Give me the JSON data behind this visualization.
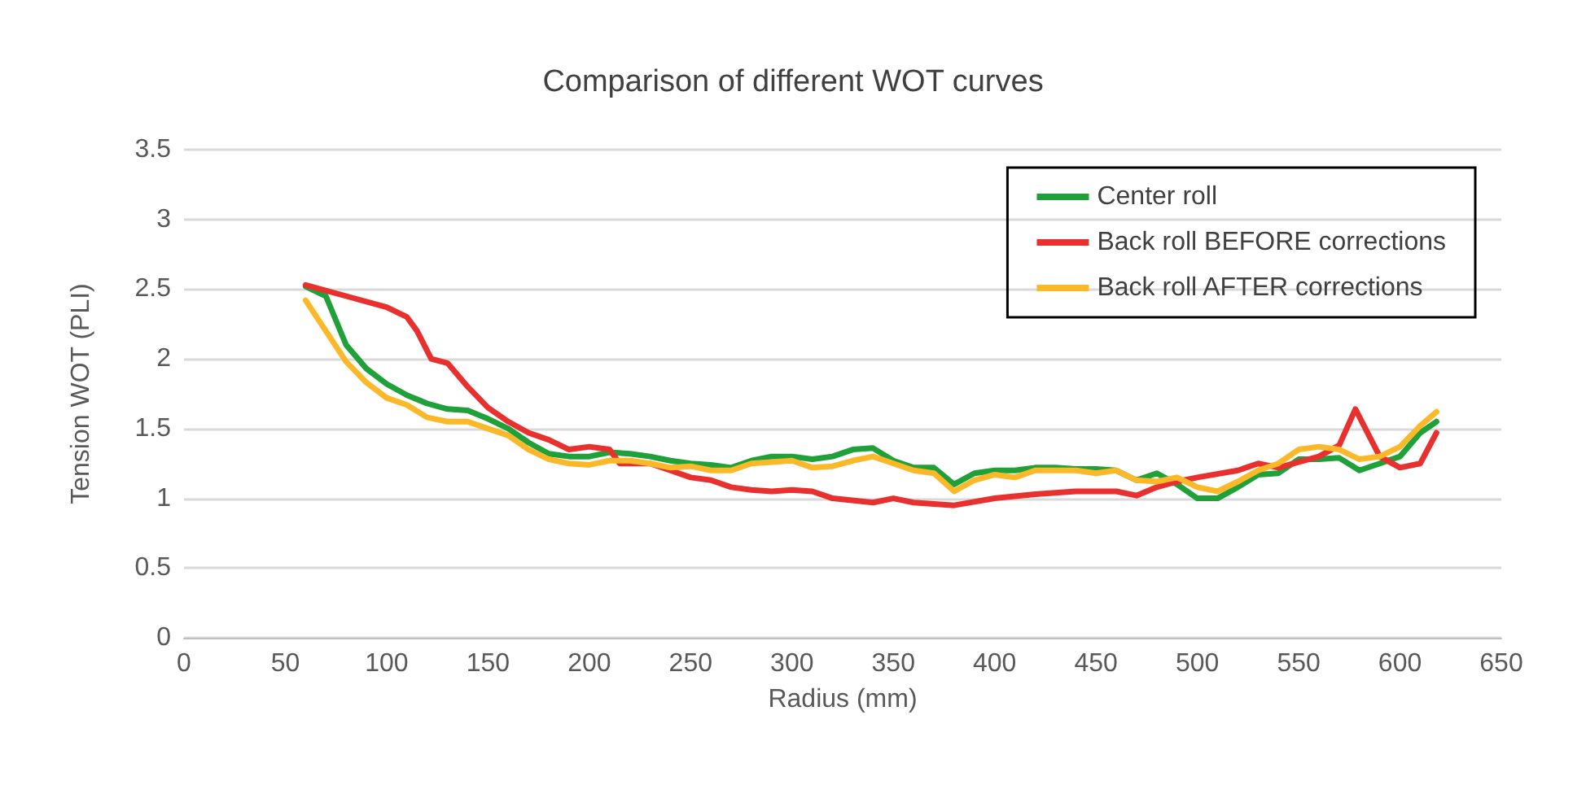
{
  "chart_data": {
    "type": "line",
    "title": "Comparison of different WOT curves",
    "xlabel": "Radius (mm)",
    "ylabel": "Tension WOT (PLI)",
    "xlim": [
      0,
      650
    ],
    "xticks": [
      0,
      50,
      100,
      150,
      200,
      250,
      300,
      350,
      400,
      450,
      500,
      550,
      600,
      650
    ],
    "ylim": [
      0,
      3.5
    ],
    "yticks": [
      0,
      0.5,
      1,
      1.5,
      2,
      2.5,
      3,
      3.5
    ],
    "grid": "y",
    "legend": "top right",
    "marker": "none",
    "line_style": "solid",
    "series": [
      {
        "name": "Center roll",
        "color": "#1fa038",
        "x": [
          60,
          70,
          80,
          90,
          100,
          110,
          120,
          130,
          140,
          150,
          160,
          170,
          180,
          190,
          200,
          210,
          220,
          230,
          240,
          250,
          260,
          270,
          280,
          290,
          300,
          310,
          320,
          330,
          340,
          350,
          360,
          370,
          380,
          390,
          400,
          410,
          420,
          430,
          440,
          450,
          460,
          470,
          480,
          490,
          500,
          510,
          520,
          530,
          540,
          550,
          560,
          570,
          580,
          590,
          600,
          610,
          618
        ],
        "values": [
          2.52,
          2.45,
          2.1,
          1.93,
          1.82,
          1.74,
          1.68,
          1.64,
          1.63,
          1.57,
          1.5,
          1.4,
          1.32,
          1.3,
          1.3,
          1.33,
          1.32,
          1.3,
          1.27,
          1.25,
          1.24,
          1.22,
          1.27,
          1.3,
          1.3,
          1.28,
          1.3,
          1.35,
          1.36,
          1.27,
          1.22,
          1.22,
          1.1,
          1.18,
          1.2,
          1.2,
          1.22,
          1.22,
          1.21,
          1.21,
          1.2,
          1.13,
          1.18,
          1.1,
          1.0,
          1.0,
          1.08,
          1.17,
          1.18,
          1.28,
          1.28,
          1.29,
          1.2,
          1.25,
          1.3,
          1.47,
          1.55
        ]
      },
      {
        "name": "Back roll BEFORE corrections",
        "color": "#e8312e",
        "x": [
          60,
          80,
          100,
          110,
          115,
          122,
          130,
          140,
          150,
          160,
          170,
          180,
          190,
          200,
          210,
          215,
          230,
          240,
          250,
          260,
          270,
          280,
          290,
          300,
          310,
          320,
          340,
          350,
          360,
          380,
          400,
          420,
          440,
          460,
          470,
          480,
          490,
          500,
          520,
          530,
          540,
          560,
          570,
          578,
          590,
          600,
          610,
          618
        ],
        "values": [
          2.53,
          2.45,
          2.37,
          2.3,
          2.2,
          2.0,
          1.97,
          1.8,
          1.65,
          1.55,
          1.47,
          1.42,
          1.35,
          1.37,
          1.35,
          1.25,
          1.25,
          1.2,
          1.15,
          1.13,
          1.08,
          1.06,
          1.05,
          1.06,
          1.05,
          1.0,
          0.97,
          1.0,
          0.97,
          0.95,
          1.0,
          1.03,
          1.05,
          1.05,
          1.02,
          1.08,
          1.12,
          1.15,
          1.2,
          1.25,
          1.22,
          1.3,
          1.38,
          1.64,
          1.3,
          1.22,
          1.25,
          1.47
        ]
      },
      {
        "name": "Back roll AFTER corrections",
        "color": "#fbb829",
        "x": [
          60,
          70,
          80,
          90,
          100,
          110,
          120,
          130,
          140,
          150,
          160,
          170,
          180,
          190,
          200,
          210,
          220,
          230,
          240,
          250,
          260,
          270,
          280,
          290,
          300,
          310,
          320,
          330,
          340,
          350,
          360,
          370,
          380,
          390,
          400,
          410,
          420,
          430,
          440,
          450,
          460,
          470,
          480,
          490,
          500,
          510,
          520,
          530,
          540,
          550,
          560,
          570,
          580,
          590,
          600,
          610,
          618
        ],
        "values": [
          2.42,
          2.2,
          1.98,
          1.83,
          1.72,
          1.67,
          1.58,
          1.55,
          1.55,
          1.5,
          1.45,
          1.35,
          1.28,
          1.25,
          1.24,
          1.27,
          1.27,
          1.25,
          1.22,
          1.23,
          1.2,
          1.2,
          1.25,
          1.26,
          1.27,
          1.22,
          1.23,
          1.27,
          1.3,
          1.25,
          1.2,
          1.18,
          1.05,
          1.13,
          1.17,
          1.15,
          1.2,
          1.2,
          1.2,
          1.18,
          1.2,
          1.13,
          1.12,
          1.15,
          1.08,
          1.05,
          1.12,
          1.2,
          1.25,
          1.35,
          1.37,
          1.35,
          1.28,
          1.3,
          1.37,
          1.52,
          1.62
        ]
      }
    ]
  }
}
